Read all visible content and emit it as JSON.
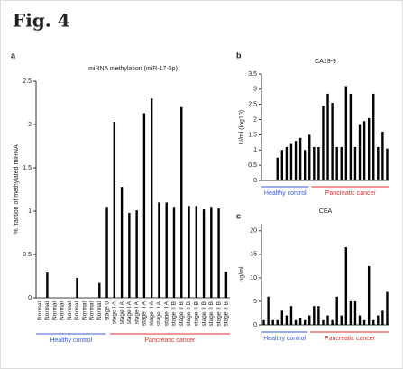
{
  "figure_title": "Fig. 4",
  "chart_data": [
    {
      "type": "bar",
      "panel": "a",
      "title": "miRNA methylation (miR-17-5p)",
      "y_label": "% fraction of methylated miRNA",
      "categories": [
        "Normal",
        "Normal",
        "Normal",
        "Normal",
        "Normal",
        "Normal",
        "Normal",
        "Normal",
        "Normal",
        "stage 0",
        "stage I A",
        "stage I A",
        "stage I A",
        "stage I A",
        "stage II A",
        "stage II A",
        "stage II A",
        "stage II A",
        "stage II B",
        "stage II B",
        "stage II B",
        "stage II B",
        "stage II B",
        "stage II B",
        "stage II B",
        "stage II B"
      ],
      "values": [
        0,
        0.29,
        0,
        0,
        0,
        0.23,
        0,
        0,
        0.17,
        1.05,
        2.03,
        1.28,
        0.98,
        1.01,
        2.13,
        2.3,
        1.1,
        1.1,
        1.05,
        2.2,
        1.06,
        1.06,
        1.02,
        1.05,
        1.03,
        0.3
      ],
      "color": "#000000",
      "ylim": [
        0,
        2.5
      ],
      "yticks": [
        0,
        0.5,
        1,
        1.5,
        2,
        2.5
      ],
      "groups": [
        {
          "name": "Healthy control",
          "color": "#3b5bd6"
        },
        {
          "name": "Pancreatic cancer",
          "color": "#e03030"
        }
      ]
    },
    {
      "type": "bar",
      "panel": "b",
      "title": "CA19-9",
      "y_label": "U/ml (log10)",
      "values": [
        0,
        0,
        0,
        0.75,
        1.0,
        1.1,
        1.2,
        1.3,
        1.4,
        1.0,
        1.5,
        1.1,
        1.1,
        2.45,
        2.85,
        2.55,
        1.1,
        1.1,
        3.1,
        2.85,
        1.1,
        1.85,
        1.95,
        2.05,
        2.85,
        1.1,
        1.6,
        1.05
      ],
      "color": "#000000",
      "ylim": [
        0,
        3.5
      ],
      "yticks": [
        0,
        0.5,
        1,
        1.5,
        2,
        2.5,
        3,
        3.5
      ],
      "groups": [
        {
          "name": "Healthy control",
          "color": "#3b5bd6"
        },
        {
          "name": "Pancreatic cancer",
          "color": "#e03030"
        }
      ]
    },
    {
      "type": "bar",
      "panel": "c",
      "title": "CEA",
      "y_label": "ng/ml",
      "values": [
        1,
        6,
        1,
        1,
        3,
        2,
        4,
        1,
        1.5,
        1,
        2,
        4,
        4,
        1,
        2,
        1,
        6,
        2,
        16.5,
        5,
        5,
        2,
        1,
        12.5,
        1,
        2,
        3,
        7
      ],
      "color": "#000000",
      "ylim": [
        0,
        21.5
      ],
      "yticks": [
        0,
        5,
        10,
        15,
        20
      ],
      "groups": [
        {
          "name": "Healthy control",
          "color": "#3b5bd6"
        },
        {
          "name": "Pancreatic cancer",
          "color": "#e03030"
        }
      ]
    }
  ]
}
